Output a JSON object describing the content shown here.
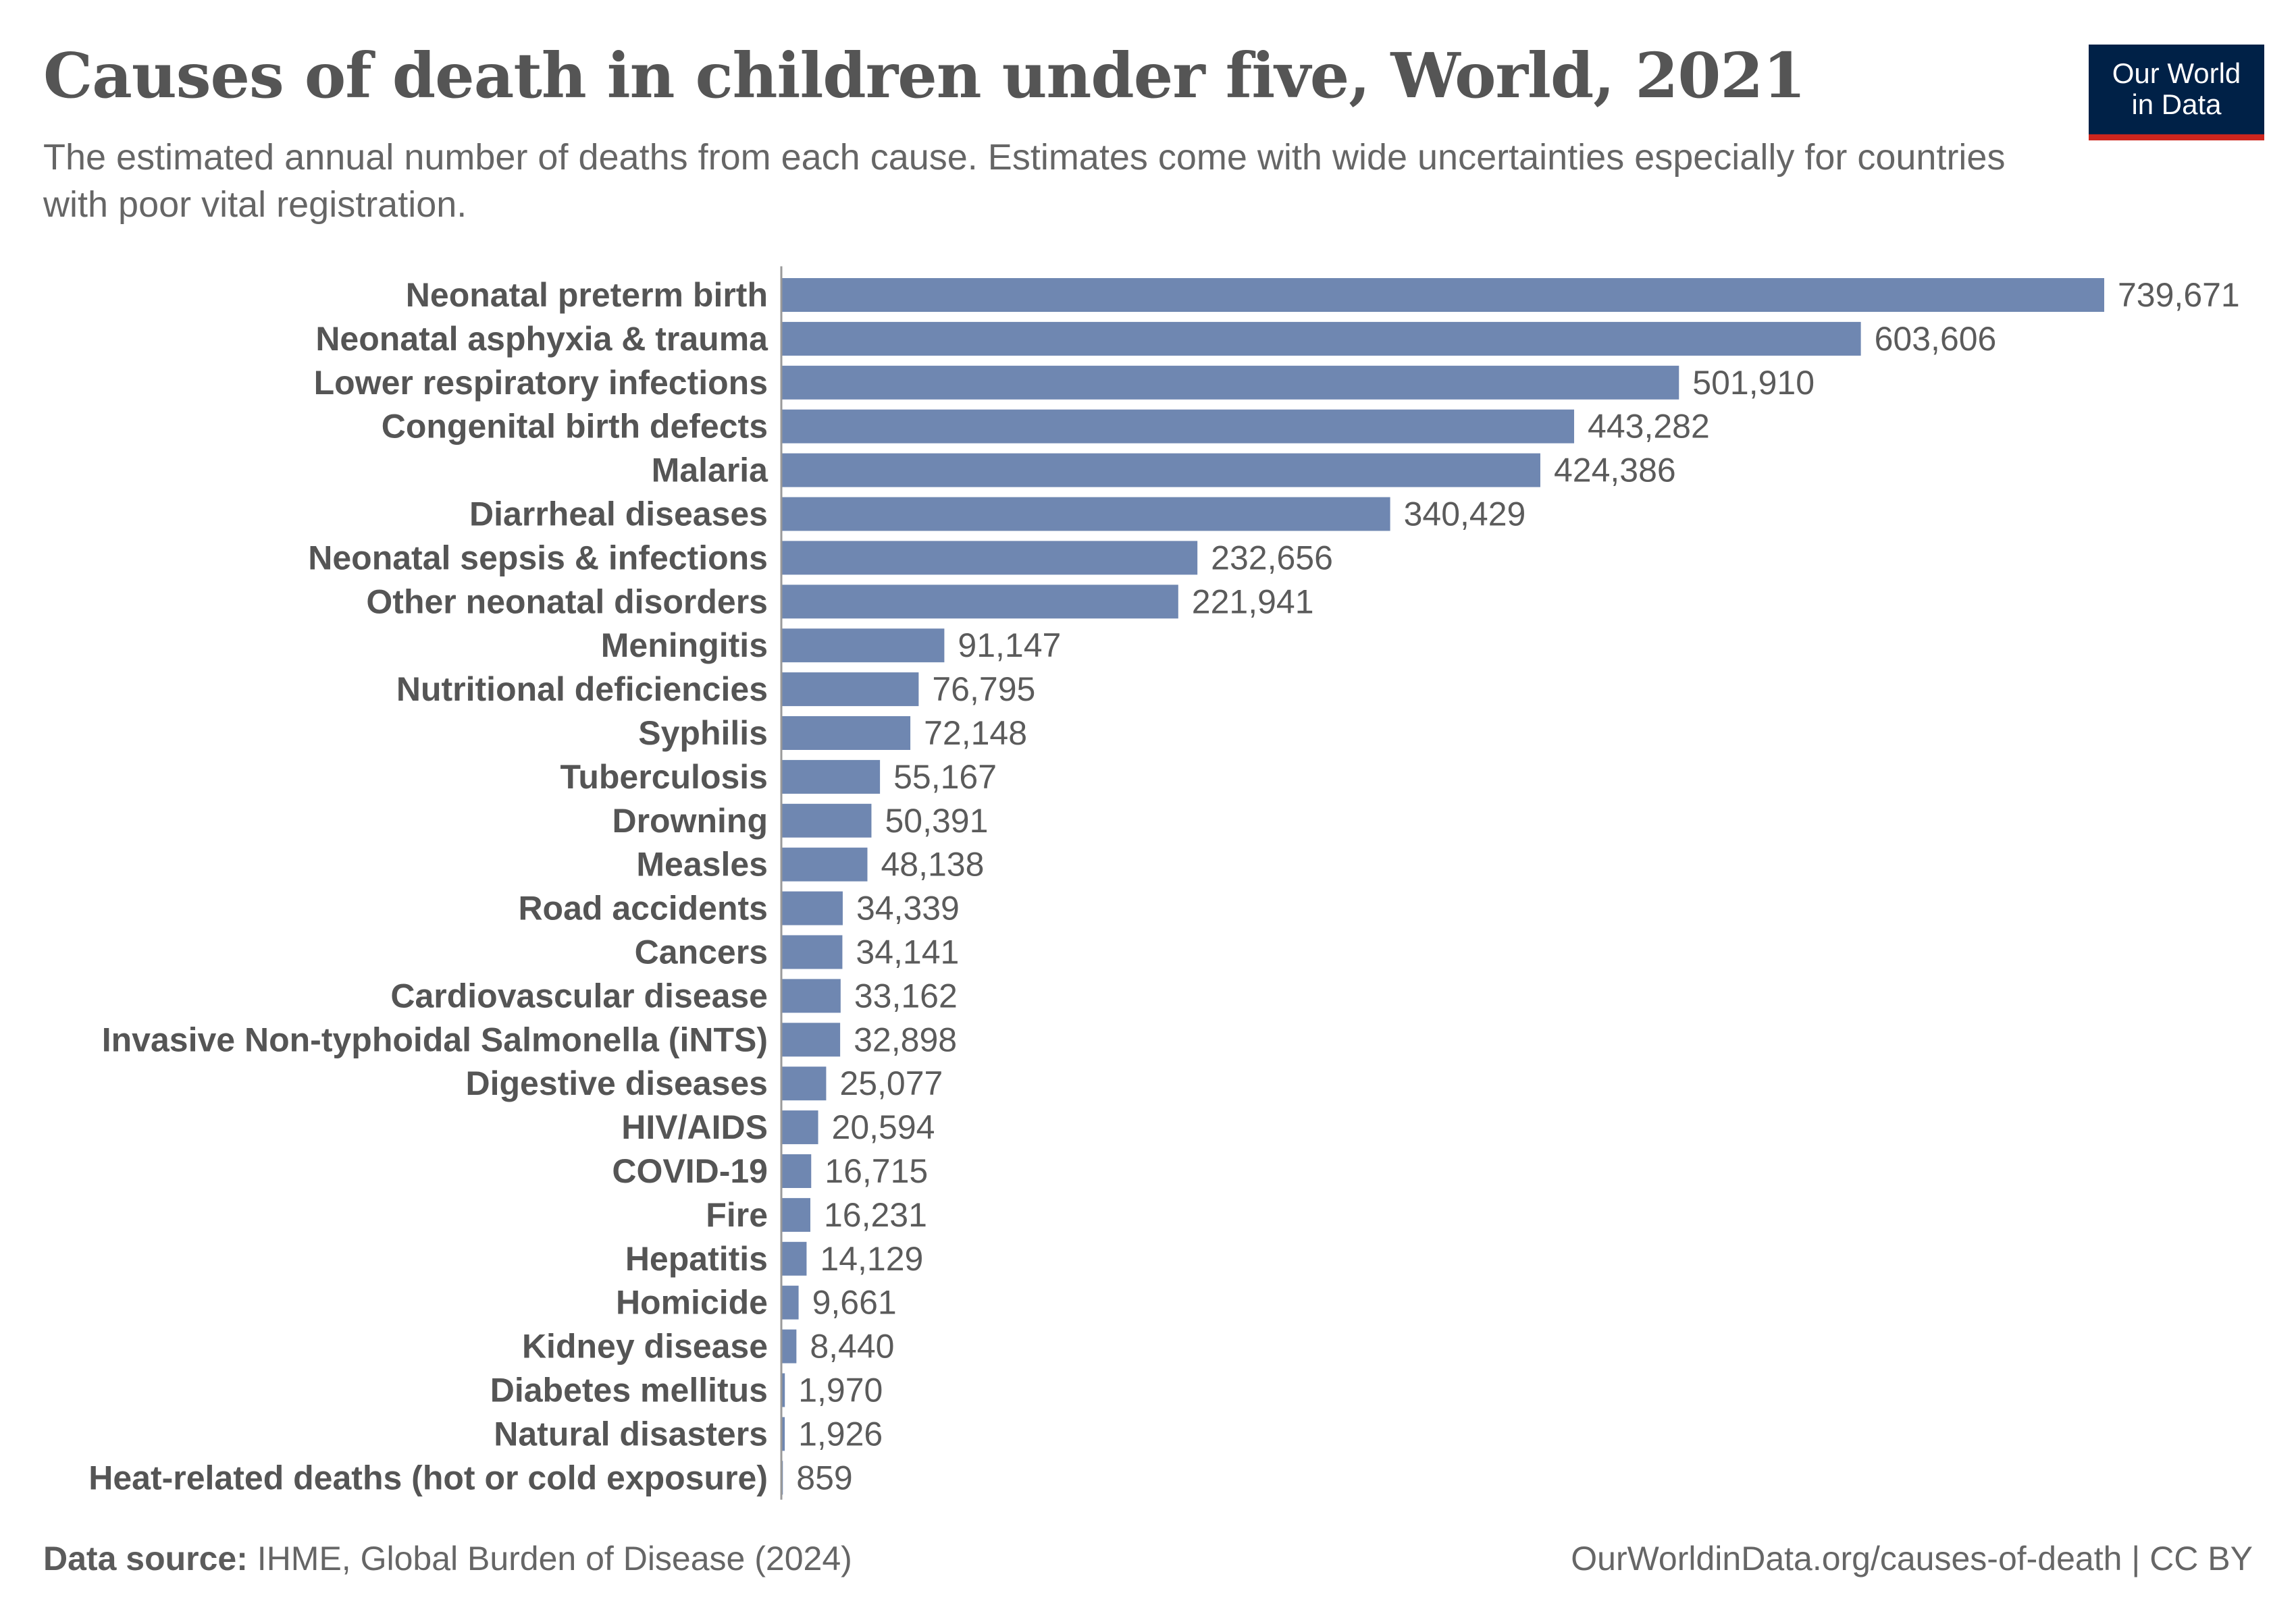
{
  "header": {
    "title": "Causes of death in children under five, World, 2021",
    "subtitle": "The estimated annual number of deaths from each cause. Estimates come with wide uncertainties especially for countries with poor vital registration."
  },
  "logo": {
    "line1": "Our World",
    "line2": "in Data"
  },
  "footer": {
    "source_label": "Data source:",
    "source_text": "IHME, Global Burden of Disease (2024)",
    "credit": "OurWorldinData.org/causes-of-death | CC BY"
  },
  "colors": {
    "bar": "#6f87b1",
    "axis": "#999999",
    "logo_bg": "#002147",
    "logo_accent": "#ce261e"
  },
  "chart_data": {
    "type": "bar",
    "orientation": "horizontal",
    "title": "Causes of death in children under five, World, 2021",
    "xlabel": "",
    "ylabel": "",
    "xlim": [
      0,
      739671
    ],
    "grid": false,
    "categories": [
      "Neonatal preterm birth",
      "Neonatal asphyxia & trauma",
      "Lower respiratory infections",
      "Congenital birth defects",
      "Malaria",
      "Diarrheal diseases",
      "Neonatal sepsis & infections",
      "Other neonatal disorders",
      "Meningitis",
      "Nutritional deficiencies",
      "Syphilis",
      "Tuberculosis",
      "Drowning",
      "Measles",
      "Road accidents",
      "Cancers",
      "Cardiovascular disease",
      "Invasive Non-typhoidal Salmonella (iNTS)",
      "Digestive diseases",
      "HIV/AIDS",
      "COVID-19",
      "Fire",
      "Hepatitis",
      "Homicide",
      "Kidney disease",
      "Diabetes mellitus",
      "Natural disasters",
      "Heat-related deaths (hot or cold exposure)"
    ],
    "values": [
      739671,
      603606,
      501910,
      443282,
      424386,
      340429,
      232656,
      221941,
      91147,
      76795,
      72148,
      55167,
      50391,
      48138,
      34339,
      34141,
      33162,
      32898,
      25077,
      20594,
      16715,
      16231,
      14129,
      9661,
      8440,
      1970,
      1926,
      859
    ],
    "value_labels": [
      "739,671",
      "603,606",
      "501,910",
      "443,282",
      "424,386",
      "340,429",
      "232,656",
      "221,941",
      "91,147",
      "76,795",
      "72,148",
      "55,167",
      "50,391",
      "48,138",
      "34,339",
      "34,141",
      "33,162",
      "32,898",
      "25,077",
      "20,594",
      "16,715",
      "16,231",
      "14,129",
      "9,661",
      "8,440",
      "1,970",
      "1,926",
      "859"
    ]
  }
}
